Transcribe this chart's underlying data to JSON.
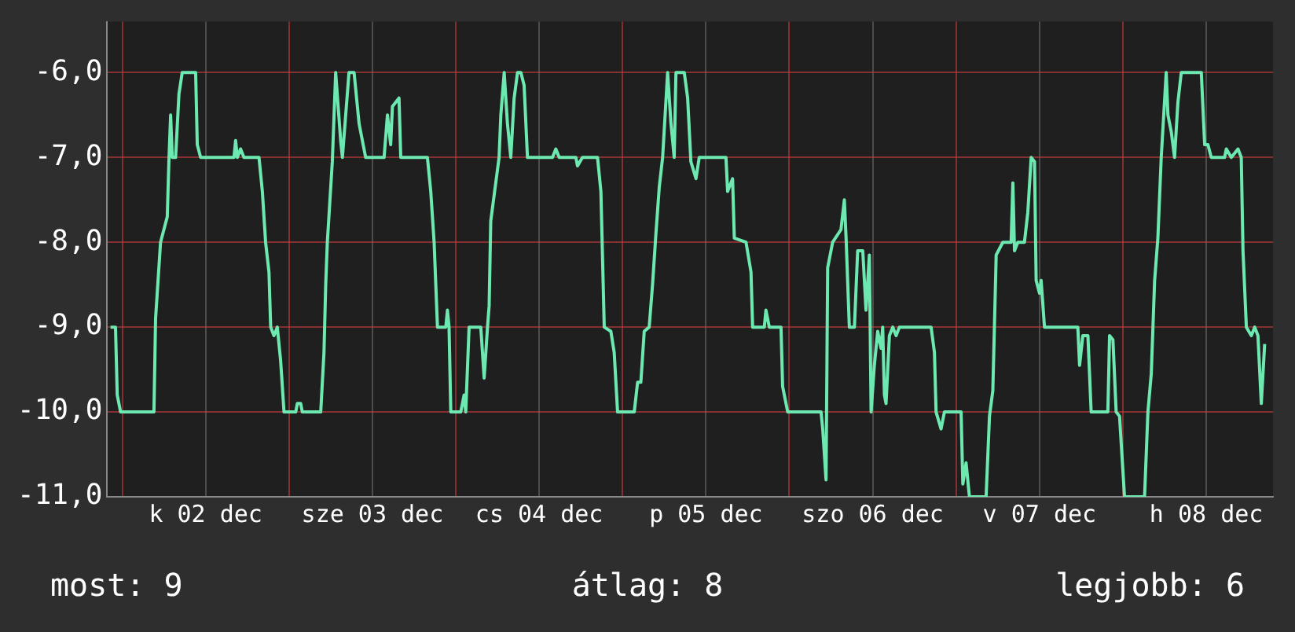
{
  "chart_data": {
    "type": "line",
    "annotations": [
      "most: 9",
      "átlag: 8",
      "legjobb: 6"
    ],
    "x": [
      "--12-01T22:19",
      "--12-01T23:02",
      "--12-01T23:17",
      "--12-01T23:46",
      "--12-02T04:34",
      "--12-02T04:48",
      "--12-02T05:31",
      "--12-02T06:29",
      "--12-02T06:43",
      "--12-02T06:58",
      "--12-02T07:12",
      "--12-02T07:41",
      "--12-02T08:10",
      "--12-02T08:38",
      "--12-02T10:34",
      "--12-02T10:48",
      "--12-02T11:17",
      "--12-02T16:05",
      "--12-02T16:19",
      "--12-02T16:34",
      "--12-02T17:02",
      "--12-02T17:31",
      "--12-02T19:41",
      "--12-02T20:10",
      "--12-02T20:38",
      "--12-02T21:07",
      "--12-02T21:22",
      "--12-02T21:50",
      "--12-02T22:19",
      "--12-02T22:48",
      "--12-02T23:17",
      "--12-03T00:58",
      "--12-03T01:12",
      "--12-03T01:41",
      "--12-03T01:55",
      "--12-03T04:34",
      "--12-03T05:02",
      "--12-03T05:17",
      "--12-03T05:31",
      "--12-03T06:14",
      "--12-03T06:43",
      "--12-03T07:26",
      "--12-03T07:41",
      "--12-03T08:38",
      "--12-03T09:22",
      "--12-03T10:05",
      "--12-03T11:02",
      "--12-03T13:41",
      "--12-03T14:10",
      "--12-03T14:38",
      "--12-03T14:53",
      "--12-03T15:50",
      "--12-03T16:05",
      "--12-03T19:55",
      "--12-03T20:24",
      "--12-03T20:53",
      "--12-03T21:22",
      "--12-03T22:34",
      "--12-03T22:48",
      "--12-03T23:02",
      "--12-03T23:17",
      "--12-04T00:43",
      "--12-04T01:12",
      "--12-04T01:26",
      "--12-04T01:55",
      "--12-04T03:36",
      "--12-04T04:05",
      "--12-04T04:34",
      "--12-04T04:48",
      "--12-04T05:02",
      "--12-04T06:14",
      "--12-04T06:29",
      "--12-04T06:58",
      "--12-04T07:26",
      "--12-04T07:55",
      "--12-04T08:24",
      "--12-04T08:53",
      "--12-04T09:22",
      "--12-04T09:50",
      "--12-04T10:19",
      "--12-04T13:55",
      "--12-04T14:24",
      "--12-04T14:53",
      "--12-04T17:17",
      "--12-04T17:31",
      "--12-04T18:14",
      "--12-04T20:24",
      "--12-04T20:53",
      "--12-04T21:22",
      "--12-04T22:19",
      "--12-04T22:48",
      "--12-04T23:17",
      "--12-05T01:41",
      "--12-05T02:10",
      "--12-05T02:38",
      "--12-05T03:07",
      "--12-05T03:50",
      "--12-05T04:19",
      "--12-05T04:48",
      "--12-05T05:17",
      "--12-05T05:46",
      "--12-05T06:29",
      "--12-05T06:58",
      "--12-05T07:26",
      "--12-05T07:41",
      "--12-05T08:53",
      "--12-05T09:22",
      "--12-05T09:50",
      "--12-05T10:34",
      "--12-05T11:02",
      "--12-05T14:53",
      "--12-05T15:07",
      "--12-05T15:50",
      "--12-05T16:05",
      "--12-05T17:46",
      "--12-05T18:29",
      "--12-05T18:43",
      "--12-05T20:24",
      "--12-05T20:38",
      "--12-05T21:07",
      "--12-05T22:48",
      "--12-05T23:02",
      "--12-05T23:46",
      "--12-06T04:34",
      "--12-06T04:48",
      "--12-06T05:17",
      "--12-06T05:31",
      "--12-06T06:14",
      "--12-06T07:26",
      "--12-06T07:55",
      "--12-06T08:10",
      "--12-06T08:38",
      "--12-06T09:22",
      "--12-06T09:50",
      "--12-06T10:34",
      "--12-06T11:02",
      "--12-06T11:31",
      "--12-06T11:46",
      "--12-06T12:14",
      "--12-06T12:43",
      "--12-06T13:12",
      "--12-06T13:26",
      "--12-06T13:41",
      "--12-06T13:55",
      "--12-06T14:24",
      "--12-06T14:53",
      "--12-06T15:22",
      "--12-06T15:50",
      "--12-06T20:24",
      "--12-06T20:53",
      "--12-06T21:07",
      "--12-06T21:50",
      "--12-06T22:19",
      "--12-07T00:43",
      "--12-07T00:58",
      "--12-07T01:26",
      "--12-07T01:55",
      "--12-07T04:19",
      "--12-07T04:48",
      "--12-07T05:17",
      "--12-07T05:46",
      "--12-07T06:43",
      "--12-07T07:55",
      "--12-07T08:10",
      "--12-07T08:24",
      "--12-07T08:53",
      "--12-07T09:50",
      "--12-07T10:19",
      "--12-07T10:48",
      "--12-07T11:17",
      "--12-07T11:31",
      "--12-07T12:00",
      "--12-07T12:14",
      "--12-07T12:43",
      "--12-07T17:31",
      "--12-07T17:46",
      "--12-07T18:14",
      "--12-07T18:58",
      "--12-07T19:26",
      "--12-07T21:50",
      "--12-07T22:05",
      "--12-07T22:34",
      "--12-07T23:02",
      "--12-07T23:31",
      "--12-08T00:14",
      "--12-08T03:07",
      "--12-08T03:36",
      "--12-08T04:05",
      "--12-08T04:34",
      "--12-08T05:02",
      "--12-08T05:31",
      "--12-08T06:14",
      "--12-08T06:29",
      "--12-08T06:58",
      "--12-08T07:26",
      "--12-08T07:55",
      "--12-08T08:24",
      "--12-08T11:17",
      "--12-08T11:46",
      "--12-08T12:14",
      "--12-08T12:43",
      "--12-08T14:38",
      "--12-08T14:53",
      "--12-08T15:36",
      "--12-08T16:34",
      "--12-08T17:02",
      "--12-08T17:17",
      "--12-08T17:46",
      "--12-08T18:29",
      "--12-08T18:58",
      "--12-08T19:26",
      "--12-08T19:55",
      "--12-08T20:24"
    ],
    "series": [
      {
        "color": "#6de8b0",
        "values": [
          -9.0,
          -9.0,
          -9.8,
          -10.0,
          -10.0,
          -8.9,
          -8.0,
          -7.7,
          -7.05,
          -6.5,
          -7.0,
          -7.0,
          -6.25,
          -6.0,
          -6.0,
          -6.85,
          -7.0,
          -7.0,
          -6.8,
          -7.0,
          -6.9,
          -7.0,
          -7.0,
          -7.4,
          -8.0,
          -8.35,
          -9.0,
          -9.1,
          -9.0,
          -9.4,
          -10.0,
          -10.0,
          -9.9,
          -9.9,
          -10.0,
          -10.0,
          -9.3,
          -8.5,
          -8.0,
          -7.05,
          -6.0,
          -6.8,
          -7.0,
          -6.0,
          -6.0,
          -6.6,
          -7.0,
          -7.0,
          -6.5,
          -6.85,
          -6.4,
          -6.3,
          -7.0,
          -7.0,
          -7.4,
          -8.0,
          -9.0,
          -9.0,
          -8.8,
          -9.0,
          -10.0,
          -10.0,
          -9.8,
          -10.0,
          -9.0,
          -9.0,
          -9.6,
          -9.0,
          -8.75,
          -7.75,
          -7.0,
          -6.5,
          -6.0,
          -6.6,
          -7.0,
          -6.3,
          -6.0,
          -6.0,
          -6.15,
          -7.0,
          -7.0,
          -6.9,
          -7.0,
          -7.0,
          -7.1,
          -7.0,
          -7.0,
          -7.4,
          -9.0,
          -9.05,
          -9.3,
          -10.0,
          -10.0,
          -9.65,
          -9.65,
          -9.05,
          -9.0,
          -8.5,
          -7.9,
          -7.35,
          -7.0,
          -6.0,
          -6.6,
          -7.0,
          -6.0,
          -6.0,
          -6.3,
          -7.05,
          -7.25,
          -7.0,
          -7.0,
          -7.4,
          -7.25,
          -7.95,
          -8.0,
          -8.35,
          -9.0,
          -9.0,
          -8.8,
          -9.0,
          -9.0,
          -9.7,
          -10.0,
          -10.0,
          -10.2,
          -10.8,
          -8.3,
          -8.0,
          -7.85,
          -7.5,
          -7.95,
          -9.0,
          -9.0,
          -8.1,
          -8.1,
          -8.8,
          -8.15,
          -10.0,
          -9.45,
          -9.05,
          -9.25,
          -9.0,
          -9.8,
          -9.9,
          -9.1,
          -9.0,
          -9.1,
          -9.0,
          -9.0,
          -9.3,
          -10.0,
          -10.2,
          -10.0,
          -10.0,
          -10.85,
          -10.6,
          -11.0,
          -11.0,
          -10.05,
          -9.75,
          -8.15,
          -8.0,
          -8.0,
          -7.3,
          -8.1,
          -8.0,
          -8.0,
          -7.65,
          -7.0,
          -7.05,
          -8.45,
          -8.6,
          -8.45,
          -9.0,
          -9.0,
          -9.45,
          -9.1,
          -9.1,
          -10.0,
          -10.0,
          -9.1,
          -9.15,
          -10.0,
          -10.05,
          -11.0,
          -11.0,
          -10.0,
          -9.55,
          -8.45,
          -7.95,
          -7.0,
          -6.0,
          -6.5,
          -6.7,
          -7.0,
          -6.35,
          -6.0,
          -6.0,
          -6.85,
          -6.85,
          -7.0,
          -7.0,
          -6.9,
          -7.0,
          -6.9,
          -7.0,
          -8.1,
          -9.0,
          -9.1,
          -9.0,
          -9.1,
          -9.9,
          -9.2
        ]
      }
    ],
    "xlim": [
      "--12-01T21:50",
      "--12-08T21:36"
    ],
    "xticks": [
      {
        "value": "--12-02",
        "label": null
      },
      {
        "value": "--12-02T12:00",
        "label": "k 02 dec"
      },
      {
        "value": "--12-03",
        "label": null
      },
      {
        "value": "--12-03T12:00",
        "label": "sze 03 dec"
      },
      {
        "value": "--12-04",
        "label": null
      },
      {
        "value": "--12-04T12:00",
        "label": "cs 04 dec"
      },
      {
        "value": "--12-05",
        "label": null
      },
      {
        "value": "--12-05T12:00",
        "label": "p 05 dec"
      },
      {
        "value": "--12-06",
        "label": null
      },
      {
        "value": "--12-06T12:00",
        "label": "szo 06 dec"
      },
      {
        "value": "--12-07",
        "label": null
      },
      {
        "value": "--12-07T12:00",
        "label": "v 07 dec"
      },
      {
        "value": "--12-08",
        "label": null
      },
      {
        "value": "--12-08T12:00",
        "label": "h 08 dec"
      }
    ],
    "ylim": [
      -11,
      -5.4
    ],
    "yticks": [
      {
        "value": -11,
        "label": "-11,0"
      },
      {
        "value": -10,
        "label": "-10,0"
      },
      {
        "value": -9,
        "label": "-9,0"
      },
      {
        "value": -8,
        "label": "-8,0"
      },
      {
        "value": -7,
        "label": "-7,0"
      },
      {
        "value": -6,
        "label": "-6,0"
      }
    ],
    "grid": true,
    "legend": false
  }
}
